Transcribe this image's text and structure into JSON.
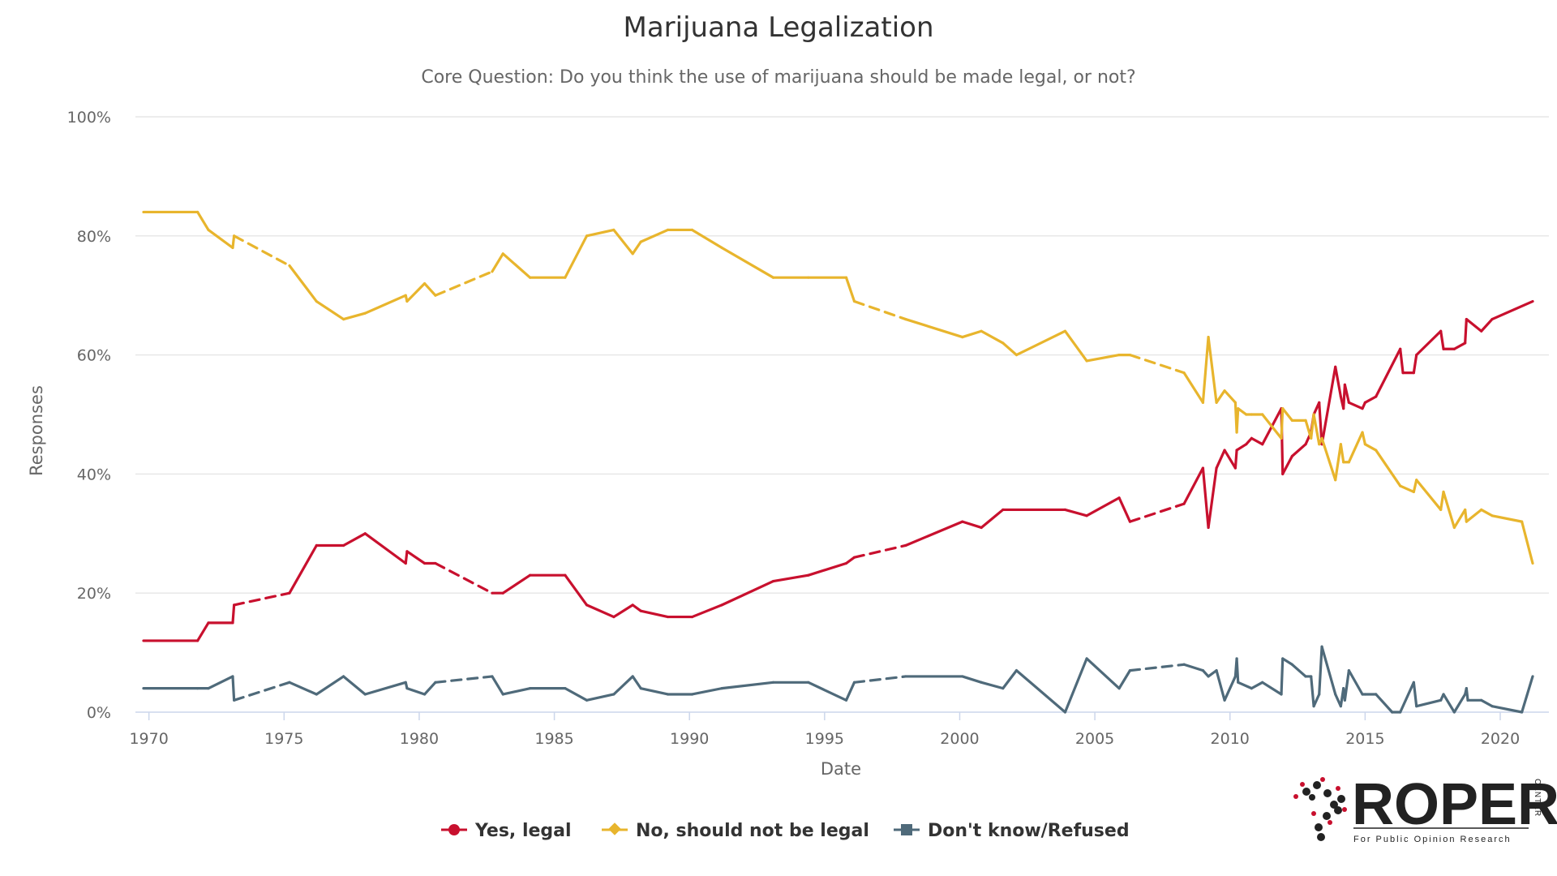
{
  "chart_data": {
    "type": "line",
    "title": "Marijuana Legalization",
    "subtitle": "Core Question: Do you think the use of marijuana should be made legal, or not?",
    "xlabel": "Date",
    "ylabel": "Responses",
    "xlim": [
      1969.5,
      2021.8
    ],
    "ylim": [
      0,
      100
    ],
    "x_ticks": [
      1970,
      1975,
      1980,
      1985,
      1990,
      1995,
      2000,
      2005,
      2010,
      2015,
      2020
    ],
    "y_ticks": [
      0,
      20,
      40,
      60,
      80,
      100
    ],
    "y_tick_labels": [
      "0%",
      "20%",
      "40%",
      "60%",
      "80%",
      "100%"
    ],
    "grid": true,
    "legend_position": "bottom-center",
    "series": [
      {
        "name": "Yes, legal",
        "color": "#c8102e",
        "marker": "circle",
        "points": [
          [
            1969.8,
            12
          ],
          [
            1971.8,
            12
          ],
          [
            1972.2,
            15
          ],
          [
            1973.1,
            15
          ],
          [
            1973.15,
            18
          ],
          [
            1975.2,
            20
          ],
          [
            1976.2,
            28
          ],
          [
            1977.2,
            28
          ],
          [
            1978.0,
            30
          ],
          [
            1979.5,
            25
          ],
          [
            1979.55,
            27
          ],
          [
            1980.2,
            25
          ],
          [
            1980.6,
            25
          ],
          [
            1982.7,
            20
          ],
          [
            1983.1,
            20
          ],
          [
            1984.1,
            23
          ],
          [
            1985.4,
            23
          ],
          [
            1986.2,
            18
          ],
          [
            1987.2,
            16
          ],
          [
            1987.9,
            18
          ],
          [
            1988.2,
            17
          ],
          [
            1989.2,
            16
          ],
          [
            1990.1,
            16
          ],
          [
            1991.2,
            18
          ],
          [
            1993.1,
            22
          ],
          [
            1994.4,
            23
          ],
          [
            1995.8,
            25
          ],
          [
            1996.1,
            26
          ],
          [
            1998.0,
            28
          ],
          [
            2000.1,
            32
          ],
          [
            2000.8,
            31
          ],
          [
            2001.6,
            34
          ],
          [
            2003.9,
            34
          ],
          [
            2004.7,
            33
          ],
          [
            2005.9,
            36
          ],
          [
            2006.3,
            32
          ],
          [
            2008.3,
            35
          ],
          [
            2009.0,
            41
          ],
          [
            2009.2,
            31
          ],
          [
            2009.5,
            41
          ],
          [
            2009.8,
            44
          ],
          [
            2010.2,
            41
          ],
          [
            2010.25,
            44
          ],
          [
            2010.6,
            45
          ],
          [
            2010.8,
            46
          ],
          [
            2011.2,
            45
          ],
          [
            2011.9,
            51
          ],
          [
            2011.95,
            40
          ],
          [
            2012.3,
            43
          ],
          [
            2012.8,
            45
          ],
          [
            2013.0,
            47
          ],
          [
            2013.1,
            50
          ],
          [
            2013.3,
            52
          ],
          [
            2013.4,
            45
          ],
          [
            2013.9,
            58
          ],
          [
            2014.1,
            53
          ],
          [
            2014.2,
            51
          ],
          [
            2014.25,
            55
          ],
          [
            2014.4,
            52
          ],
          [
            2014.9,
            51
          ],
          [
            2015.0,
            52
          ],
          [
            2015.4,
            53
          ],
          [
            2016.3,
            61
          ],
          [
            2016.4,
            57
          ],
          [
            2016.8,
            57
          ],
          [
            2016.9,
            60
          ],
          [
            2017.8,
            64
          ],
          [
            2017.9,
            61
          ],
          [
            2018.3,
            61
          ],
          [
            2018.7,
            62
          ],
          [
            2018.75,
            66
          ],
          [
            2019.3,
            64
          ],
          [
            2019.7,
            66
          ],
          [
            2021.2,
            69
          ]
        ],
        "dashed_segments": [
          [
            1973.15,
            1975.2
          ],
          [
            1980.6,
            1982.7
          ],
          [
            1996.1,
            1998.0
          ],
          [
            2006.3,
            2008.3
          ]
        ]
      },
      {
        "name": "No, should not be legal",
        "color": "#e8b52d",
        "marker": "diamond",
        "points": [
          [
            1969.8,
            84
          ],
          [
            1971.8,
            84
          ],
          [
            1972.2,
            81
          ],
          [
            1973.1,
            78
          ],
          [
            1973.15,
            80
          ],
          [
            1975.2,
            75
          ],
          [
            1976.2,
            69
          ],
          [
            1977.2,
            66
          ],
          [
            1978.0,
            67
          ],
          [
            1979.5,
            70
          ],
          [
            1979.55,
            69
          ],
          [
            1980.2,
            72
          ],
          [
            1980.6,
            70
          ],
          [
            1982.7,
            74
          ],
          [
            1983.1,
            77
          ],
          [
            1984.1,
            73
          ],
          [
            1985.4,
            73
          ],
          [
            1986.2,
            80
          ],
          [
            1987.2,
            81
          ],
          [
            1987.9,
            77
          ],
          [
            1988.2,
            79
          ],
          [
            1989.2,
            81
          ],
          [
            1990.1,
            81
          ],
          [
            1991.2,
            78
          ],
          [
            1993.1,
            73
          ],
          [
            1994.4,
            73
          ],
          [
            1995.8,
            73
          ],
          [
            1996.1,
            69
          ],
          [
            1998.0,
            66
          ],
          [
            2000.1,
            63
          ],
          [
            2000.8,
            64
          ],
          [
            2001.6,
            62
          ],
          [
            2002.1,
            60
          ],
          [
            2003.9,
            64
          ],
          [
            2004.7,
            59
          ],
          [
            2005.9,
            60
          ],
          [
            2006.3,
            60
          ],
          [
            2008.3,
            57
          ],
          [
            2009.0,
            52
          ],
          [
            2009.2,
            63
          ],
          [
            2009.5,
            52
          ],
          [
            2009.8,
            54
          ],
          [
            2010.2,
            52
          ],
          [
            2010.25,
            47
          ],
          [
            2010.3,
            51
          ],
          [
            2010.6,
            50
          ],
          [
            2010.8,
            50
          ],
          [
            2011.2,
            50
          ],
          [
            2011.9,
            46
          ],
          [
            2011.95,
            51
          ],
          [
            2012.3,
            49
          ],
          [
            2012.8,
            49
          ],
          [
            2013.0,
            46
          ],
          [
            2013.1,
            50
          ],
          [
            2013.3,
            45
          ],
          [
            2013.4,
            46
          ],
          [
            2013.9,
            39
          ],
          [
            2014.1,
            45
          ],
          [
            2014.2,
            42
          ],
          [
            2014.4,
            42
          ],
          [
            2014.9,
            47
          ],
          [
            2015.0,
            45
          ],
          [
            2015.4,
            44
          ],
          [
            2016.3,
            38
          ],
          [
            2016.8,
            37
          ],
          [
            2016.9,
            39
          ],
          [
            2017.8,
            34
          ],
          [
            2017.9,
            37
          ],
          [
            2018.3,
            31
          ],
          [
            2018.7,
            34
          ],
          [
            2018.75,
            32
          ],
          [
            2019.3,
            34
          ],
          [
            2019.7,
            33
          ],
          [
            2020.8,
            32
          ],
          [
            2021.2,
            25
          ]
        ],
        "dashed_segments": [
          [
            1973.15,
            1975.2
          ],
          [
            1980.6,
            1982.7
          ],
          [
            1996.1,
            1998.0
          ],
          [
            2006.3,
            2008.3
          ]
        ]
      },
      {
        "name": "Don't know/Refused",
        "color": "#4f6a7a",
        "marker": "square",
        "points": [
          [
            1969.8,
            4
          ],
          [
            1971.8,
            4
          ],
          [
            1972.2,
            4
          ],
          [
            1973.1,
            6
          ],
          [
            1973.15,
            2
          ],
          [
            1975.2,
            5
          ],
          [
            1976.2,
            3
          ],
          [
            1977.2,
            6
          ],
          [
            1978.0,
            3
          ],
          [
            1979.5,
            5
          ],
          [
            1979.55,
            4
          ],
          [
            1980.2,
            3
          ],
          [
            1980.6,
            5
          ],
          [
            1982.7,
            6
          ],
          [
            1983.1,
            3
          ],
          [
            1984.1,
            4
          ],
          [
            1985.4,
            4
          ],
          [
            1986.2,
            2
          ],
          [
            1987.2,
            3
          ],
          [
            1987.9,
            6
          ],
          [
            1988.2,
            4
          ],
          [
            1989.2,
            3
          ],
          [
            1990.1,
            3
          ],
          [
            1991.2,
            4
          ],
          [
            1993.1,
            5
          ],
          [
            1994.4,
            5
          ],
          [
            1995.8,
            2
          ],
          [
            1996.1,
            5
          ],
          [
            1998.0,
            6
          ],
          [
            2000.1,
            6
          ],
          [
            2000.8,
            5
          ],
          [
            2001.6,
            4
          ],
          [
            2002.1,
            7
          ],
          [
            2003.9,
            0
          ],
          [
            2004.7,
            9
          ],
          [
            2005.9,
            4
          ],
          [
            2006.3,
            7
          ],
          [
            2008.3,
            8
          ],
          [
            2009.0,
            7
          ],
          [
            2009.2,
            6
          ],
          [
            2009.5,
            7
          ],
          [
            2009.8,
            2
          ],
          [
            2010.2,
            6
          ],
          [
            2010.25,
            9
          ],
          [
            2010.3,
            5
          ],
          [
            2010.8,
            4
          ],
          [
            2011.2,
            5
          ],
          [
            2011.9,
            3
          ],
          [
            2011.95,
            9
          ],
          [
            2012.3,
            8
          ],
          [
            2012.8,
            6
          ],
          [
            2013.0,
            6
          ],
          [
            2013.1,
            1
          ],
          [
            2013.3,
            3
          ],
          [
            2013.4,
            11
          ],
          [
            2013.9,
            3
          ],
          [
            2014.1,
            1
          ],
          [
            2014.2,
            4
          ],
          [
            2014.25,
            2
          ],
          [
            2014.4,
            7
          ],
          [
            2014.9,
            3
          ],
          [
            2015.0,
            3
          ],
          [
            2015.4,
            3
          ],
          [
            2016.0,
            0
          ],
          [
            2016.3,
            0
          ],
          [
            2016.8,
            5
          ],
          [
            2016.9,
            1
          ],
          [
            2017.8,
            2
          ],
          [
            2017.9,
            3
          ],
          [
            2018.3,
            0
          ],
          [
            2018.7,
            3
          ],
          [
            2018.75,
            4
          ],
          [
            2018.8,
            2
          ],
          [
            2019.3,
            2
          ],
          [
            2019.7,
            1
          ],
          [
            2020.8,
            0
          ],
          [
            2021.2,
            6
          ]
        ],
        "dashed_segments": [
          [
            1973.15,
            1975.2
          ],
          [
            1980.6,
            1982.7
          ],
          [
            1996.1,
            1998.0
          ],
          [
            2006.3,
            2008.3
          ]
        ]
      }
    ]
  },
  "branding": {
    "name": "ROPER",
    "tagline": "For Public Opinion Research",
    "vertical": "CENTER",
    "dot_dark": "#222222",
    "dot_accent": "#c8102e"
  }
}
